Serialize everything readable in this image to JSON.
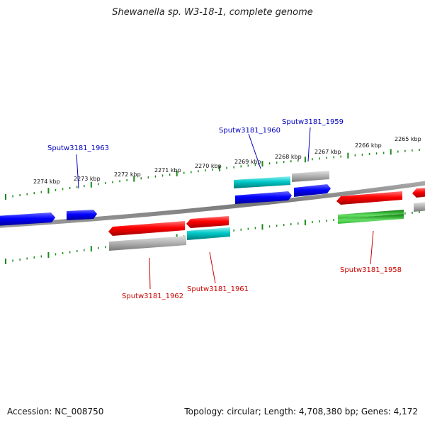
{
  "title": "Shewanella sp. W3-18-1, complete genome",
  "footer": {
    "accession": "Accession: NC_008750",
    "summary": "Topology: circular; Length: 4,708,380 bp; Genes: 4,172"
  },
  "colors": {
    "forward_gene": "#0000ff",
    "reverse_gene": "#ff0000",
    "rna_cyan": "#00c8c8",
    "pseudo_gray": "#b4b4b4",
    "green_feature": "#22aa22",
    "backbone": "#808080",
    "tick": "#1a8a1a",
    "forward_label": "#0000c0",
    "reverse_label": "#cc0000"
  },
  "scale_labels": [
    "2274 kbp",
    "2273 kbp",
    "2272 kbp",
    "2271 kbp",
    "2270 kbp",
    "2269 kbp",
    "2268 kbp",
    "2267 kbp",
    "2266 kbp",
    "2265 kbp"
  ],
  "genes": [
    {
      "name": "Sputw3181_1963",
      "strand": "forward"
    },
    {
      "name": "Sputw3181_1960",
      "strand": "forward"
    },
    {
      "name": "Sputw3181_1959",
      "strand": "forward"
    },
    {
      "name": "Sputw3181_1962",
      "strand": "reverse"
    },
    {
      "name": "Sputw3181_1961",
      "strand": "reverse"
    },
    {
      "name": "Sputw3181_1958",
      "strand": "reverse"
    }
  ]
}
